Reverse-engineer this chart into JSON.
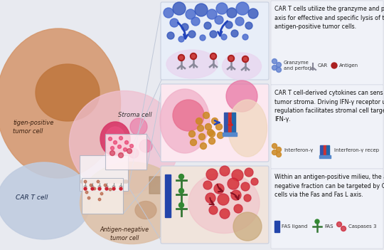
{
  "bg_color": "#e8eaf0",
  "tumor_pos_color": "#d4956a",
  "tumor_pos_nucleus": "#c07840",
  "car_t_color": "#c0cce0",
  "car_t_dark": "#a8b8d0",
  "stroma_pink": "#f0c0d0",
  "stroma_nucleus": "#cc3060",
  "antigen_neg_color": "#ddc0a8",
  "panel_bg1": "#e8eef8",
  "panel_bg2": "#fce8f0",
  "panel_bg3": "#f0e4dc",
  "panel_border": "#c8d0e0",
  "text_bg": "#f0f2f8",
  "blue_sphere": "#5577cc",
  "blue_sphere_dark": "#3355aa",
  "orange_dot": "#cc8833",
  "red_circle": "#cc2233",
  "dark_red": "#881122",
  "blue_bar": "#3355aa",
  "green_fas": "#337733",
  "gray_receptor": "#888899",
  "connector_color": "#c0c8d8",
  "inset_border": "#aab0c0",
  "text1": "CAR T cells utilize the granzyme and p\naxis for effective and specific lysis of th\nantigen-positive tumor cells.",
  "text2": "CAR T cell-derived cytokines can sens\ntumor stroma. Driving IFN-γ receptor u\nregulation facilitates stromal cell targeti\nIFN-γ.",
  "text3": "Within an antigen-positive milieu, the a\nnegative fraction can be targeted by CA\ncells via the Fas and Fas L axis.",
  "leg1a": "Granzyme\nand perforin",
  "leg1b": "CAR",
  "leg1c": "Antigen",
  "leg2a": "Interferon-γ",
  "leg2b": "Interferon-γ recep",
  "leg3a": "FAS ligand",
  "leg3b": "FAS",
  "leg3c": "Caspases 3"
}
